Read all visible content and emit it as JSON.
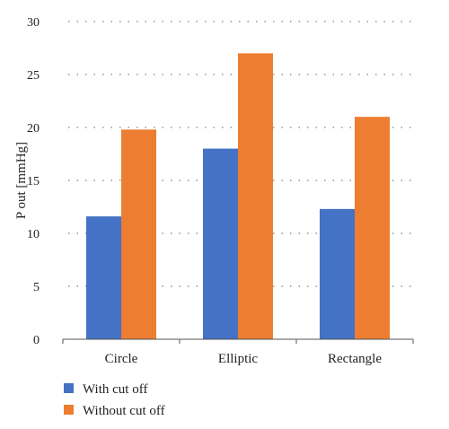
{
  "chart_data": {
    "type": "bar",
    "categories": [
      "Circle",
      "Elliptic",
      "Rectangle"
    ],
    "series": [
      {
        "name": "With cut off",
        "values": [
          11.6,
          18.0,
          12.3
        ],
        "color": "#4472c4"
      },
      {
        "name": "Without cut off",
        "values": [
          19.8,
          27.0,
          21.0
        ],
        "color": "#ed7d31"
      }
    ],
    "title": "",
    "xlabel": "",
    "ylabel": "P out [mmHg]",
    "ylim": [
      0,
      30
    ],
    "yticks": [
      0,
      5,
      10,
      15,
      20,
      25,
      30
    ],
    "grid": true,
    "legend_position": "bottom-left"
  }
}
